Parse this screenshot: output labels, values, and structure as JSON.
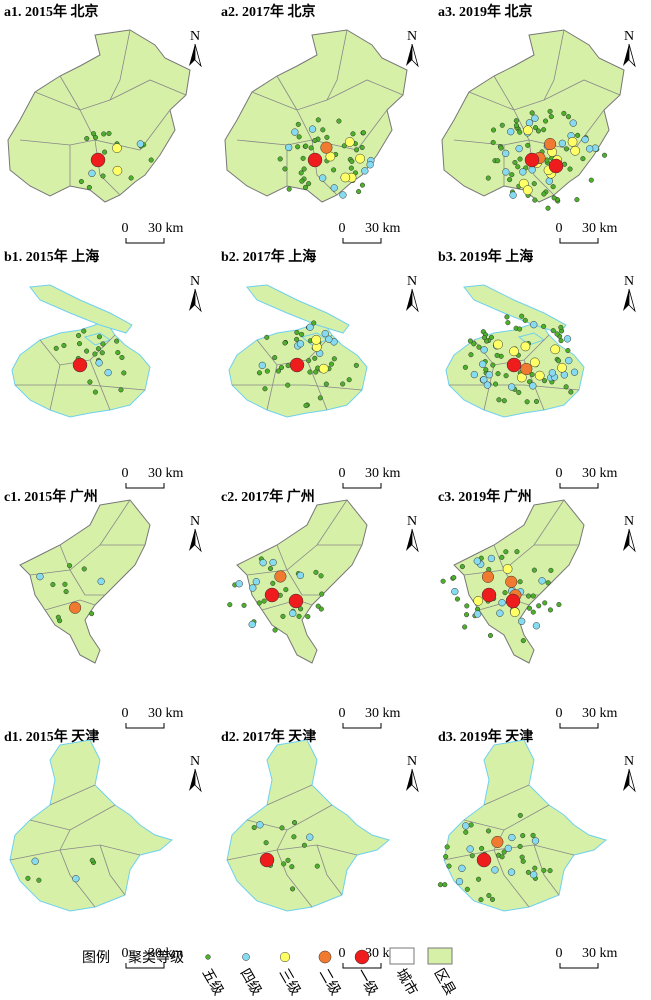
{
  "panels": [
    {
      "title": "a1. 2015年 北京"
    },
    {
      "title": "a2. 2017年 北京"
    },
    {
      "title": "a3. 2019年 北京"
    },
    {
      "title": "b1. 2015年 上海"
    },
    {
      "title": "b2. 2017年 上海"
    },
    {
      "title": "b3. 2019年 上海"
    },
    {
      "title": "c1. 2015年 广州"
    },
    {
      "title": "c2. 2017年 广州"
    },
    {
      "title": "c3. 2019年 广州"
    },
    {
      "title": "d1. 2015年 天津"
    },
    {
      "title": "d2. 2017年 天津"
    },
    {
      "title": "d3. 2019年 天津"
    }
  ],
  "scale_bar": {
    "zero": "0",
    "distance": "30 km"
  },
  "north": "N",
  "legend": {
    "title": "图例",
    "group": "聚类等级",
    "items": [
      "五级",
      "四级",
      "三级",
      "二级",
      "一级",
      "城市",
      "区县"
    ]
  }
}
